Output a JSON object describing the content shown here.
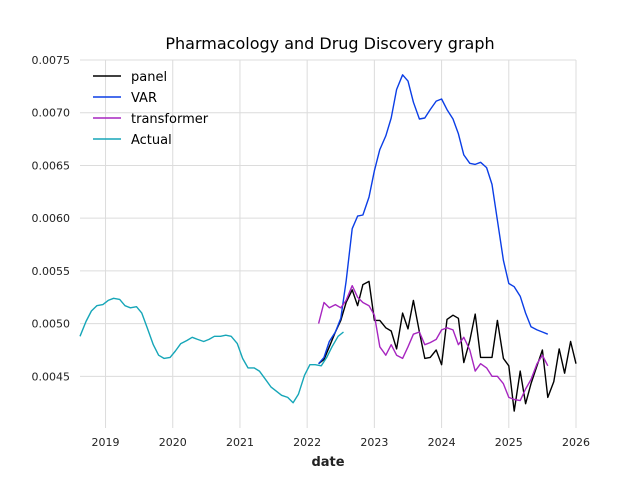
{
  "chart_data": {
    "type": "line",
    "title": "Pharmacology and Drug Discovery graph",
    "xlabel": "date",
    "ylabel": "",
    "xlim": [
      2018.62,
      2026.0
    ],
    "ylim": [
      0.00401,
      0.0075
    ],
    "x_ticks": [
      2019,
      2020,
      2021,
      2022,
      2023,
      2024,
      2025,
      2026
    ],
    "x_tick_labels": [
      "2019",
      "2020",
      "2021",
      "2022",
      "2023",
      "2024",
      "2025",
      "2026"
    ],
    "y_ticks": [
      0.0045,
      0.005,
      0.0055,
      0.006,
      0.0065,
      0.007,
      0.0075
    ],
    "y_tick_labels": [
      "0.0045",
      "0.0050",
      "0.0055",
      "0.0060",
      "0.0065",
      "0.0070",
      "0.0075"
    ],
    "grid": true,
    "legend_position": "top-left",
    "series": [
      {
        "name": "panel",
        "color": "#000000",
        "x": [
          2022.17,
          2022.25,
          2022.33,
          2022.42,
          2022.5,
          2022.58,
          2022.67,
          2022.75,
          2022.83,
          2022.92,
          2023.0,
          2023.08,
          2023.17,
          2023.25,
          2023.33,
          2023.42,
          2023.5,
          2023.58,
          2023.67,
          2023.75,
          2023.83,
          2023.92,
          2024.0,
          2024.08,
          2024.17,
          2024.25,
          2024.33,
          2024.42,
          2024.5,
          2024.58,
          2024.67,
          2024.75,
          2024.83,
          2024.92,
          2025.0,
          2025.08,
          2025.17,
          2025.25,
          2025.33,
          2025.42,
          2025.5,
          2025.58,
          2025.67,
          2025.75,
          2025.83,
          2025.92,
          2026.0
        ],
        "values": [
          0.00462,
          0.00466,
          0.00478,
          0.00492,
          0.00503,
          0.0052,
          0.00532,
          0.00517,
          0.00537,
          0.0054,
          0.00503,
          0.00503,
          0.00496,
          0.00493,
          0.00476,
          0.0051,
          0.00495,
          0.00522,
          0.00492,
          0.00467,
          0.00468,
          0.00475,
          0.00461,
          0.00504,
          0.00508,
          0.00505,
          0.00463,
          0.00484,
          0.00509,
          0.00468,
          0.00468,
          0.00468,
          0.00503,
          0.00467,
          0.0046,
          0.00417,
          0.00455,
          0.00424,
          0.00443,
          0.0046,
          0.00475,
          0.0043,
          0.00445,
          0.00476,
          0.00453,
          0.00483,
          0.00462
        ]
      },
      {
        "name": "VAR",
        "color": "#0b3ee6",
        "x": [
          2022.17,
          2022.25,
          2022.33,
          2022.42,
          2022.5,
          2022.58,
          2022.67,
          2022.75,
          2022.83,
          2022.92,
          2023.0,
          2023.08,
          2023.17,
          2023.25,
          2023.33,
          2023.42,
          2023.5,
          2023.58,
          2023.67,
          2023.75,
          2023.83,
          2023.92,
          2024.0,
          2024.08,
          2024.17,
          2024.25,
          2024.33,
          2024.42,
          2024.5,
          2024.58,
          2024.67,
          2024.75,
          2024.83,
          2024.92,
          2025.0,
          2025.08,
          2025.17,
          2025.25,
          2025.33,
          2025.42,
          2025.5,
          2025.58
        ],
        "values": [
          0.00462,
          0.00468,
          0.00483,
          0.00492,
          0.00505,
          0.0054,
          0.0059,
          0.00602,
          0.00603,
          0.0062,
          0.00645,
          0.00665,
          0.00678,
          0.00695,
          0.00722,
          0.00736,
          0.0073,
          0.0071,
          0.00694,
          0.00695,
          0.00703,
          0.00711,
          0.00713,
          0.00703,
          0.00694,
          0.0068,
          0.0066,
          0.00652,
          0.00651,
          0.00653,
          0.00648,
          0.00632,
          0.00598,
          0.0056,
          0.00538,
          0.00535,
          0.00526,
          0.0051,
          0.00497,
          0.00494,
          0.00492,
          0.0049
        ]
      },
      {
        "name": "transformer",
        "color": "#a726c0",
        "x": [
          2022.17,
          2022.25,
          2022.33,
          2022.42,
          2022.5,
          2022.58,
          2022.67,
          2022.75,
          2022.83,
          2022.92,
          2023.0,
          2023.08,
          2023.17,
          2023.25,
          2023.33,
          2023.42,
          2023.5,
          2023.58,
          2023.67,
          2023.75,
          2023.83,
          2023.92,
          2024.0,
          2024.08,
          2024.17,
          2024.25,
          2024.33,
          2024.42,
          2024.5,
          2024.58,
          2024.67,
          2024.75,
          2024.83,
          2024.92,
          2025.0,
          2025.08,
          2025.17,
          2025.25,
          2025.33,
          2025.42,
          2025.5,
          2025.58
        ],
        "values": [
          0.005,
          0.0052,
          0.00515,
          0.00518,
          0.00515,
          0.00522,
          0.00536,
          0.00525,
          0.0052,
          0.00517,
          0.00508,
          0.00478,
          0.0047,
          0.0048,
          0.0047,
          0.00467,
          0.00478,
          0.0049,
          0.00492,
          0.0048,
          0.00482,
          0.00485,
          0.00494,
          0.00496,
          0.00494,
          0.0048,
          0.00487,
          0.00475,
          0.00455,
          0.00462,
          0.00458,
          0.0045,
          0.0045,
          0.00443,
          0.0043,
          0.00428,
          0.00427,
          0.00438,
          0.00447,
          0.00462,
          0.0047,
          0.0046
        ]
      },
      {
        "name": "Actual",
        "color": "#16a6b8",
        "x": [
          2018.62,
          2018.71,
          2018.79,
          2018.87,
          2018.96,
          2019.04,
          2019.12,
          2019.21,
          2019.29,
          2019.37,
          2019.46,
          2019.54,
          2019.62,
          2019.71,
          2019.79,
          2019.87,
          2019.96,
          2020.04,
          2020.12,
          2020.21,
          2020.29,
          2020.37,
          2020.46,
          2020.54,
          2020.62,
          2020.71,
          2020.79,
          2020.87,
          2020.96,
          2021.04,
          2021.12,
          2021.21,
          2021.29,
          2021.37,
          2021.46,
          2021.54,
          2021.62,
          2021.71,
          2021.79,
          2021.87,
          2021.96,
          2022.04,
          2022.12,
          2022.21,
          2022.29,
          2022.37,
          2022.46,
          2022.54
        ],
        "values": [
          0.00488,
          0.00502,
          0.00512,
          0.00517,
          0.00518,
          0.00522,
          0.00524,
          0.00523,
          0.00517,
          0.00515,
          0.00516,
          0.0051,
          0.00496,
          0.0048,
          0.0047,
          0.00467,
          0.00468,
          0.00474,
          0.00481,
          0.00484,
          0.00487,
          0.00485,
          0.00483,
          0.00485,
          0.00488,
          0.00488,
          0.00489,
          0.00488,
          0.00481,
          0.00467,
          0.00458,
          0.00458,
          0.00455,
          0.00448,
          0.0044,
          0.00436,
          0.00432,
          0.0043,
          0.00425,
          0.00433,
          0.00451,
          0.00461,
          0.00461,
          0.0046,
          0.00468,
          0.00478,
          0.00488,
          0.00492
        ]
      }
    ]
  }
}
